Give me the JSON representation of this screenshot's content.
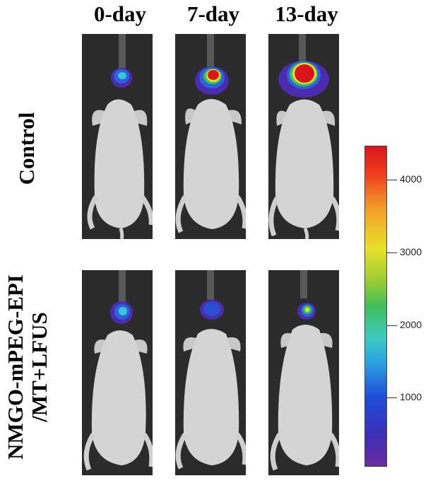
{
  "columns": [
    "0-day",
    "7-day",
    "13-day"
  ],
  "rows": [
    "Control",
    "NMGO-mPEG-EPI /MT+LFUS"
  ],
  "row_lines": {
    "control": [
      "Control"
    ],
    "treated": [
      "NMGO-mPEG-EPI",
      "/MT+LFUS"
    ]
  },
  "colorbar": {
    "ticks": [
      "4000",
      "3000",
      "2000",
      "1000"
    ],
    "colors": [
      "#6a2aa0",
      "#1f4fd8",
      "#2aa0e0",
      "#3fbf5a",
      "#e8e02a",
      "#f2a22a",
      "#d8161a"
    ]
  },
  "panels": [
    {
      "name": "control-0-day",
      "signal": "low"
    },
    {
      "name": "control-7-day",
      "signal": "medium"
    },
    {
      "name": "control-13-day",
      "signal": "high"
    },
    {
      "name": "treated-0-day",
      "signal": "low"
    },
    {
      "name": "treated-7-day",
      "signal": "low"
    },
    {
      "name": "treated-13-day",
      "signal": "low"
    }
  ]
}
